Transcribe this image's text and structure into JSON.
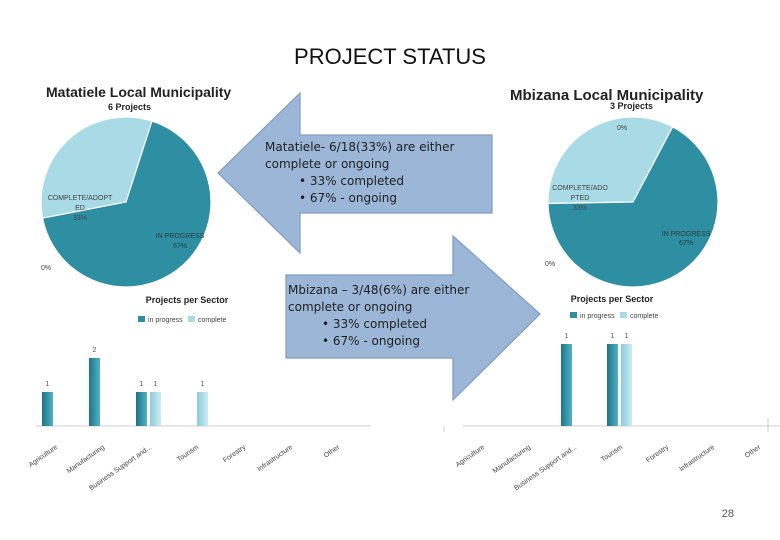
{
  "slide": {
    "title": "PROJECT STATUS",
    "page_number": "28"
  },
  "colors": {
    "in_progress": "#2e8fa3",
    "complete": "#a8dbe6",
    "arrow": "#9cb6d8",
    "arrow_stroke": "#7f9cc2"
  },
  "left": {
    "title": "Matatiele Local Municipality",
    "subtitle": "6 Projects",
    "pie_labels": {
      "complete": [
        "COMPLETE/ADOPT",
        "ED",
        "33%"
      ],
      "progress": [
        "IN PROGRESS",
        "67%"
      ],
      "zero": "0%"
    },
    "bar_title": "Projects per Sector",
    "legend": [
      "in progress",
      "complete"
    ]
  },
  "right": {
    "title": "Mbizana Local Municipality",
    "subtitle": "3 Projects",
    "pie_labels": {
      "complete": [
        "COMPLETE/ADO",
        "PTED",
        "33%"
      ],
      "progress": [
        "IN PROGRESS",
        "67%"
      ],
      "zero_top": "0%",
      "zero": "0%"
    },
    "bar_title": "Projects per Sector",
    "legend": [
      "in progress",
      "complete"
    ]
  },
  "callout_left": {
    "lines": [
      "Matatiele- 6/18(33%) are either",
      "complete or ongoing"
    ],
    "bullets": [
      "• 33% completed",
      "• 67% - ongoing"
    ]
  },
  "callout_right": {
    "lines": [
      "Mbizana – 3/48(6%) are either",
      "complete or ongoing"
    ],
    "bullets": [
      "• 33% completed",
      "• 67% - ongoing"
    ]
  },
  "chart_data": [
    {
      "type": "pie",
      "title": "Matatiele Local Municipality",
      "subtitle": "6 Projects",
      "categories": [
        "COMPLETE/ADOPTED",
        "IN PROGRESS",
        ""
      ],
      "values": [
        33,
        67,
        0
      ]
    },
    {
      "type": "bar",
      "title": "Projects per Sector",
      "categories": [
        "Agriculture",
        "Manufacturing",
        "Business Support and...",
        "Tourism",
        "Forestry",
        "Infrastructure",
        "Other"
      ],
      "series": [
        {
          "name": "in progress",
          "values": [
            1,
            2,
            1,
            null,
            null,
            null,
            null
          ]
        },
        {
          "name": "complete",
          "values": [
            null,
            null,
            1,
            1,
            null,
            null,
            null
          ]
        }
      ]
    },
    {
      "type": "pie",
      "title": "Mbizana Local Municipality",
      "subtitle": "3 Projects",
      "categories": [
        "COMPLETE/ADOPTED",
        "IN PROGRESS",
        "",
        ""
      ],
      "values": [
        33,
        67,
        0,
        0
      ]
    },
    {
      "type": "bar",
      "title": "Projects per Sector",
      "categories": [
        "Agriculture",
        "Manufacturing",
        "Business Support and...",
        "Tourism",
        "Forestry",
        "Infrastructure",
        "Other"
      ],
      "series": [
        {
          "name": "in progress",
          "values": [
            null,
            null,
            1,
            1,
            null,
            null,
            null
          ]
        },
        {
          "name": "complete",
          "values": [
            null,
            null,
            null,
            1,
            null,
            null,
            null
          ]
        }
      ]
    }
  ]
}
